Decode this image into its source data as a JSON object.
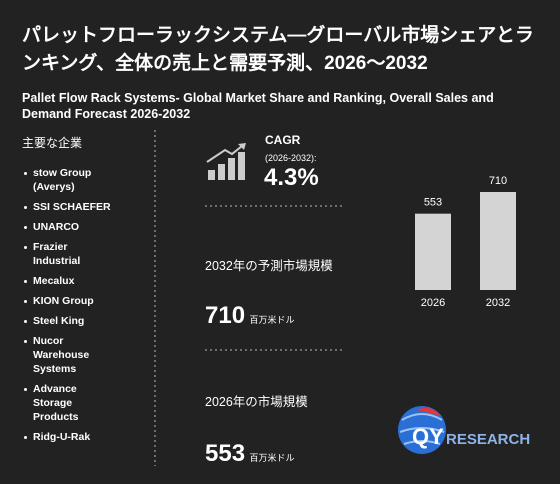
{
  "title": "パレットフローラックシステム―グローバル市場シェアとランキング、全体の売上と需要予測、2026～2032",
  "subtitle": "Pallet Flow Rack Systems- Global Market Share and Ranking, Overall Sales and Demand Forecast 2026-2032",
  "companies_heading": "主要な企業",
  "companies": [
    "stow Group (Averys)",
    "SSI SCHAEFER",
    "UNARCO",
    "Frazier Industrial",
    "Mecalux",
    "KION Group",
    "Steel King",
    "Nucor Warehouse Systems",
    "Advance Storage Products",
    "Ridg-U-Rak"
  ],
  "cagr": {
    "label": "CAGR",
    "period": "(2026-2032):",
    "value": "4.3%"
  },
  "market_2032": {
    "label": "2032年の予測市場規模",
    "value": "710",
    "unit": "百万米ドル"
  },
  "market_2026": {
    "label": "2026年の市場規模",
    "value": "553",
    "unit": "百万米ドル"
  },
  "logo": {
    "prefix": "QY",
    "suffix": "RESEARCH"
  },
  "chart_data": {
    "type": "bar",
    "categories": [
      "2026",
      "2032"
    ],
    "values": [
      553,
      710
    ],
    "color": "#d4d4d4"
  }
}
